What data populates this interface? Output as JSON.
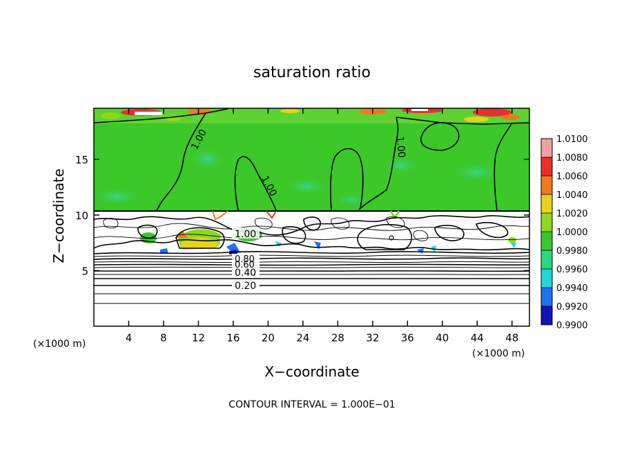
{
  "chart_data": {
    "type": "heatmap",
    "title": "saturation ratio",
    "xlabel": "X−coordinate",
    "ylabel": "Z−coordinate",
    "x_unit_left": "(×1000 m)",
    "x_unit_right": "(×1000 m)",
    "footer": "CONTOUR INTERVAL = 1.000E−01",
    "xlim": [
      0,
      50
    ],
    "ylim": [
      0,
      19.6
    ],
    "x_ticks": [
      4,
      8,
      12,
      16,
      20,
      24,
      28,
      32,
      36,
      40,
      44,
      48
    ],
    "y_ticks": [
      5,
      10,
      15
    ],
    "colorbar": {
      "levels": [
        "1.0100",
        "1.0080",
        "1.0060",
        "1.0040",
        "1.0020",
        "1.0000",
        "0.9980",
        "0.9960",
        "0.9940",
        "0.9920",
        "0.9900"
      ],
      "colors": [
        "#f0a0a0",
        "#e8302a",
        "#f0781e",
        "#e6d21e",
        "#8ed81e",
        "#3cc828",
        "#2ad880",
        "#20d8d8",
        "#2070f0",
        "#1414b4",
        "#6a0aa0"
      ]
    },
    "contour_labels": [
      {
        "text": "1.00",
        "x": 9.8,
        "y": 17.0
      },
      {
        "text": "1.00",
        "x": 18.7,
        "y": 12.6
      },
      {
        "text": "1.00",
        "x": 34.6,
        "y": 16.3
      },
      {
        "text": "1.00",
        "x": 17.5,
        "y": 8.4
      },
      {
        "text": "0.80",
        "x": 17.0,
        "y": 6.1
      },
      {
        "text": "0.60",
        "x": 17.0,
        "y": 5.6
      },
      {
        "text": "0.40",
        "x": 17.0,
        "y": 4.9
      },
      {
        "text": "0.20",
        "x": 17.0,
        "y": 3.6
      }
    ],
    "contour_levels_lower": [
      0.2,
      0.4,
      0.6,
      0.8
    ],
    "cloud_layer_top": 10.5,
    "domain_top_band": 18.5
  }
}
